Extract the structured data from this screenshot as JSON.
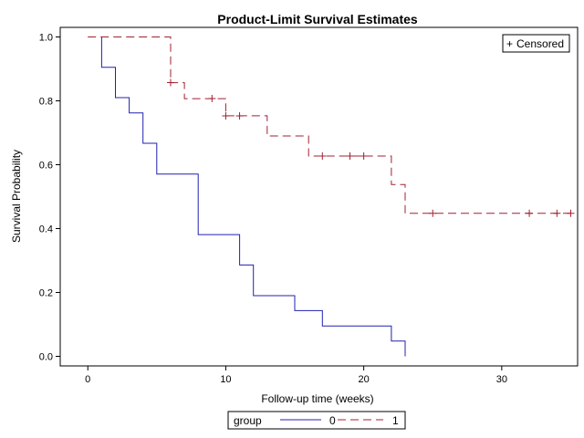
{
  "chart_data": {
    "type": "line",
    "title": "Product-Limit Survival Estimates",
    "xlabel": "Follow-up time (weeks)",
    "ylabel": "Survival Probability",
    "xlim": [
      -2,
      35.5
    ],
    "ylim": [
      -0.03,
      1.03
    ],
    "x_ticks": [
      0,
      10,
      20,
      30
    ],
    "y_ticks": [
      "0.0",
      "0.2",
      "0.4",
      "0.6",
      "0.8",
      "1.0"
    ],
    "grid": false,
    "inset_legend": {
      "symbol": "+",
      "label": "Censored",
      "placement": "top-right"
    },
    "legend": {
      "title": "group",
      "placement": "bottom"
    },
    "series": [
      {
        "name": "0",
        "color": "#2020b0",
        "dash": "solid",
        "steps": [
          [
            1,
            1.0
          ],
          [
            1,
            0.905
          ],
          [
            2,
            0.905
          ],
          [
            2,
            0.81
          ],
          [
            3,
            0.81
          ],
          [
            3,
            0.762
          ],
          [
            4,
            0.762
          ],
          [
            4,
            0.667
          ],
          [
            5,
            0.667
          ],
          [
            5,
            0.571
          ],
          [
            8,
            0.571
          ],
          [
            8,
            0.381
          ],
          [
            11,
            0.381
          ],
          [
            11,
            0.286
          ],
          [
            12,
            0.286
          ],
          [
            12,
            0.19
          ],
          [
            15,
            0.19
          ],
          [
            15,
            0.143
          ],
          [
            17,
            0.143
          ],
          [
            17,
            0.095
          ],
          [
            22,
            0.095
          ],
          [
            22,
            0.048
          ],
          [
            23,
            0.048
          ],
          [
            23,
            0.0
          ]
        ],
        "censored": []
      },
      {
        "name": "1",
        "color": "#a02030",
        "dash": "dashed",
        "steps": [
          [
            0,
            1.0
          ],
          [
            6,
            1.0
          ],
          [
            6,
            0.857
          ],
          [
            7,
            0.857
          ],
          [
            7,
            0.807
          ],
          [
            10,
            0.807
          ],
          [
            10,
            0.753
          ],
          [
            13,
            0.753
          ],
          [
            13,
            0.69
          ],
          [
            16,
            0.69
          ],
          [
            16,
            0.627
          ],
          [
            22,
            0.627
          ],
          [
            22,
            0.538
          ],
          [
            23,
            0.538
          ],
          [
            23,
            0.448
          ],
          [
            35,
            0.448
          ]
        ],
        "censored": [
          [
            6,
            0.857
          ],
          [
            9,
            0.807
          ],
          [
            10,
            0.753
          ],
          [
            11,
            0.753
          ],
          [
            17,
            0.627
          ],
          [
            19,
            0.627
          ],
          [
            20,
            0.627
          ],
          [
            25,
            0.448
          ],
          [
            32,
            0.448
          ],
          [
            34,
            0.448
          ],
          [
            35,
            0.448
          ]
        ]
      }
    ]
  }
}
